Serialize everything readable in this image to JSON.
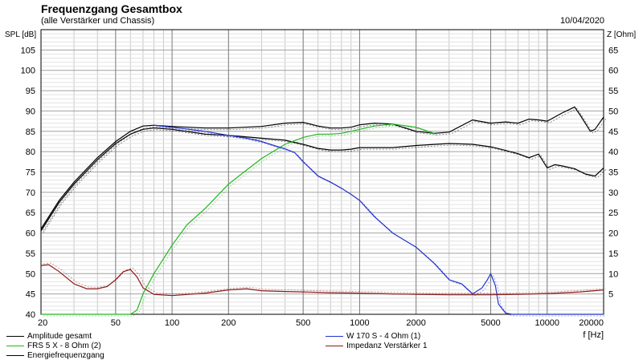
{
  "title": "Frequenzgang Gesamtbox",
  "subtitle": "(alle Verstärker und Chassis)",
  "date": "10/04/2020",
  "chart_data": {
    "type": "line",
    "xlabel": "f [Hz]",
    "ylabel_left": "SPL [dB]",
    "ylabel_right": "Z [Ohm]",
    "x_scale": "log",
    "xlim": [
      20,
      20000
    ],
    "ylim_left": [
      40,
      110
    ],
    "ylim_right": [
      0,
      70
    ],
    "x_ticks": [
      20,
      50,
      100,
      200,
      500,
      1000,
      2000,
      5000,
      10000,
      20000
    ],
    "x_tick_labels": [
      "20",
      "50",
      "100",
      "200",
      "500",
      "1000",
      "2000",
      "5000",
      "10000",
      "20000"
    ],
    "y_ticks_left": [
      40,
      45,
      50,
      55,
      60,
      65,
      70,
      75,
      80,
      85,
      90,
      95,
      100,
      105
    ],
    "y_ticks_right": [
      5,
      10,
      15,
      20,
      25,
      30,
      35,
      40,
      45,
      50,
      55,
      60,
      65
    ],
    "grid": true,
    "series": [
      {
        "name": "Amplitude gesamt",
        "color": "#000000",
        "axis": "left",
        "x": [
          20,
          25,
          30,
          40,
          50,
          60,
          70,
          80,
          100,
          150,
          200,
          300,
          400,
          500,
          600,
          700,
          800,
          900,
          1000,
          1200,
          1500,
          2000,
          2500,
          3000,
          4000,
          5000,
          6000,
          7000,
          8000,
          9000,
          10000,
          12000,
          14000,
          15000,
          17000,
          18000,
          20000
        ],
        "y": [
          61,
          68,
          72.5,
          78.5,
          82.5,
          85,
          86.3,
          86.5,
          86.2,
          85.8,
          85.8,
          86.2,
          87,
          87.2,
          86.3,
          85.8,
          85.8,
          86,
          86.6,
          87,
          86.8,
          85,
          84.5,
          84.8,
          87.8,
          87,
          87.3,
          87,
          88,
          87.8,
          87.5,
          89.5,
          91,
          89,
          85,
          85.5,
          88.5
        ]
      },
      {
        "name": "Energiefrequenzgang",
        "color": "#000000",
        "axis": "left",
        "x": [
          20,
          25,
          30,
          40,
          50,
          60,
          70,
          80,
          100,
          150,
          200,
          300,
          400,
          500,
          600,
          700,
          800,
          900,
          1000,
          1200,
          1500,
          2000,
          3000,
          4000,
          5000,
          6000,
          7000,
          8000,
          9000,
          10000,
          11000,
          12000,
          14000,
          16000,
          18000,
          20000
        ],
        "y": [
          60.5,
          67.5,
          72,
          78,
          82,
          84.3,
          85.5,
          85.8,
          85.5,
          84.3,
          84,
          83.3,
          82.8,
          81.8,
          80.8,
          80.4,
          80.4,
          80.6,
          81,
          81,
          81,
          81.5,
          82,
          81.8,
          81.2,
          80.3,
          79.5,
          78.5,
          79.4,
          76,
          76.8,
          76.5,
          75.8,
          74.5,
          74,
          76
        ]
      },
      {
        "name": "FRS 5 X - 8 Ohm (2)",
        "color": "#22b422",
        "axis": "left",
        "x": [
          20,
          60,
          65,
          70,
          80,
          100,
          120,
          150,
          200,
          250,
          300,
          400,
          500,
          600,
          700,
          800,
          900,
          1000,
          1200,
          1500,
          2000,
          2500
        ],
        "y": [
          40,
          40,
          41,
          45,
          50,
          57,
          62,
          66,
          72,
          75.5,
          78.3,
          81.8,
          83.5,
          84.3,
          84.3,
          84.5,
          85,
          85.5,
          86.3,
          86.8,
          86,
          84.5
        ]
      },
      {
        "name": "W 170 S - 4 Ohm (1)",
        "color": "#2233cc",
        "axis": "left",
        "x": [
          80,
          100,
          150,
          200,
          250,
          300,
          350,
          400,
          450,
          500,
          600,
          700,
          800,
          900,
          1000,
          1200,
          1500,
          2000,
          2500,
          3000,
          3500,
          4000,
          4500,
          4800,
          5000,
          5300,
          5500,
          6000,
          6500,
          7000,
          8000,
          20000
        ],
        "y": [
          86.5,
          86,
          85,
          84,
          83.3,
          82.5,
          81.5,
          80.7,
          79.8,
          77.5,
          74,
          72.5,
          71,
          69.5,
          68,
          64,
          60,
          56.5,
          52.5,
          48.5,
          47.5,
          45,
          46.5,
          48.5,
          50,
          47,
          42.5,
          40.3,
          40,
          40,
          40,
          40
        ]
      },
      {
        "name": "Impedanz Verstärker 1",
        "color": "#8b1a1a",
        "axis": "right",
        "x": [
          20,
          22,
          25,
          30,
          35,
          40,
          45,
          50,
          55,
          60,
          65,
          70,
          80,
          100,
          150,
          200,
          250,
          300,
          400,
          500,
          700,
          1000,
          1500,
          2000,
          3000,
          5000,
          7000,
          10000,
          15000,
          20000
        ],
        "y": [
          12,
          12.2,
          10.5,
          7.5,
          6.3,
          6.3,
          6.8,
          8.5,
          10.5,
          11,
          9.2,
          6.5,
          4.9,
          4.6,
          5.2,
          6,
          6.3,
          5.8,
          5.6,
          5.5,
          5.3,
          5.2,
          5,
          4.9,
          4.8,
          4.8,
          4.9,
          5.1,
          5.5,
          6
        ]
      }
    ],
    "legend": {
      "position": "bottom",
      "left": [
        "Amplitude gesamt",
        "FRS 5 X - 8 Ohm (2)",
        "Energiefrequenzgang"
      ],
      "right": [
        "W 170 S - 4 Ohm (1)",
        "Impedanz Verstärker 1"
      ]
    }
  },
  "legend_items": {
    "a": "Amplitude gesamt",
    "b": "FRS 5 X - 8 Ohm (2)",
    "c": "Energiefrequenzgang",
    "d": "W 170 S - 4 Ohm (1)",
    "e": "Impedanz Verstärker 1"
  }
}
